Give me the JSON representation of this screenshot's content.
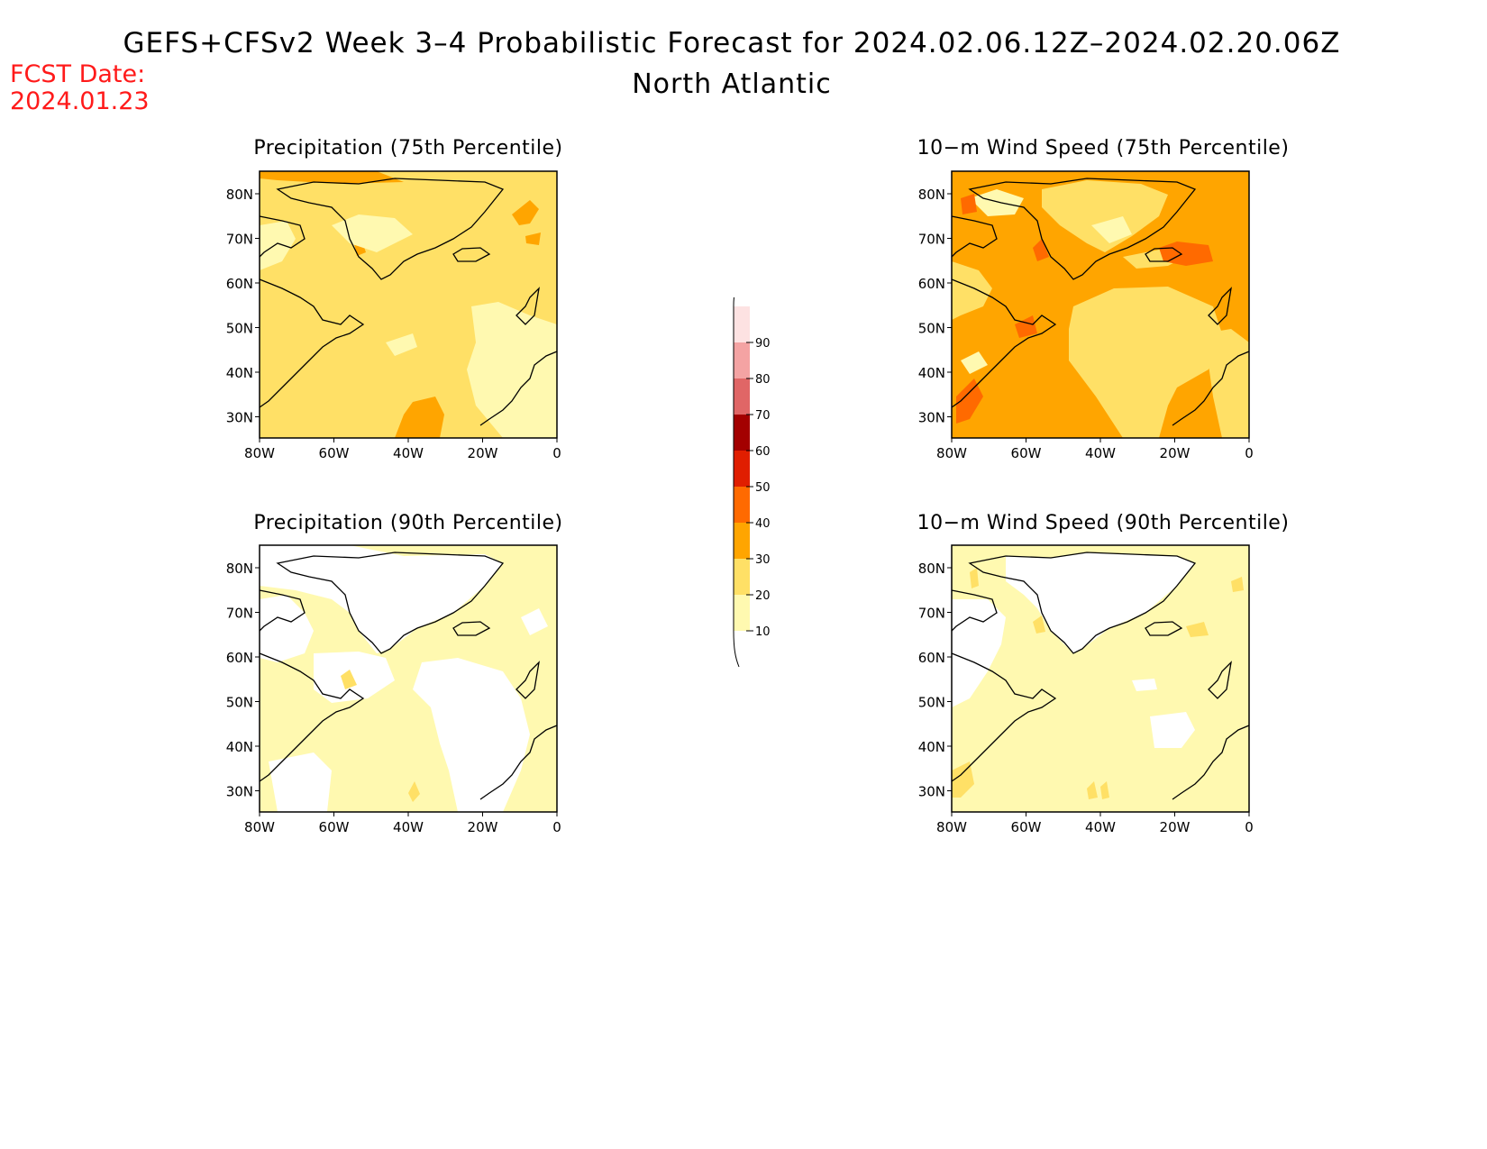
{
  "header": {
    "title": "GEFS+CFSv2 Week 3–4 Probabilistic Forecast for 2024.02.06.12Z–2024.02.20.06Z",
    "subtitle": "North Atlantic",
    "fcst_label": "FCST Date:",
    "fcst_date": "2024.01.23"
  },
  "colors": {
    "fcst_text": "#ff1a1a",
    "c10_20": "#fff9b0",
    "c20_30": "#ffe066",
    "c30_40": "#ffa500",
    "c40_50": "#ff6a00",
    "c50_60": "#e01e00",
    "c60_70": "#a30000",
    "c70_80": "#e06666",
    "c80_90": "#f4a3a3",
    "c90_100": "#fde2e2"
  },
  "colorbar": {
    "ticks": [
      "10",
      "20",
      "30",
      "40",
      "50",
      "60",
      "70",
      "80",
      "90"
    ]
  },
  "axes": {
    "lon_labels": [
      "80W",
      "60W",
      "40W",
      "20W",
      "0"
    ],
    "lat_labels": [
      "80N",
      "70N",
      "60N",
      "50N",
      "40N",
      "30N"
    ]
  },
  "panels": [
    {
      "id": "precip-75",
      "title": "Precipitation (75th Percentile)",
      "background": "c20_30"
    },
    {
      "id": "wind-75",
      "title": "10−m Wind Speed (75th Percentile)",
      "background": "c30_40"
    },
    {
      "id": "precip-90",
      "title": "Precipitation (90th Percentile)",
      "background": "c10_20"
    },
    {
      "id": "wind-90",
      "title": "10−m Wind Speed (90th Percentile)",
      "background": "c10_20"
    }
  ]
}
